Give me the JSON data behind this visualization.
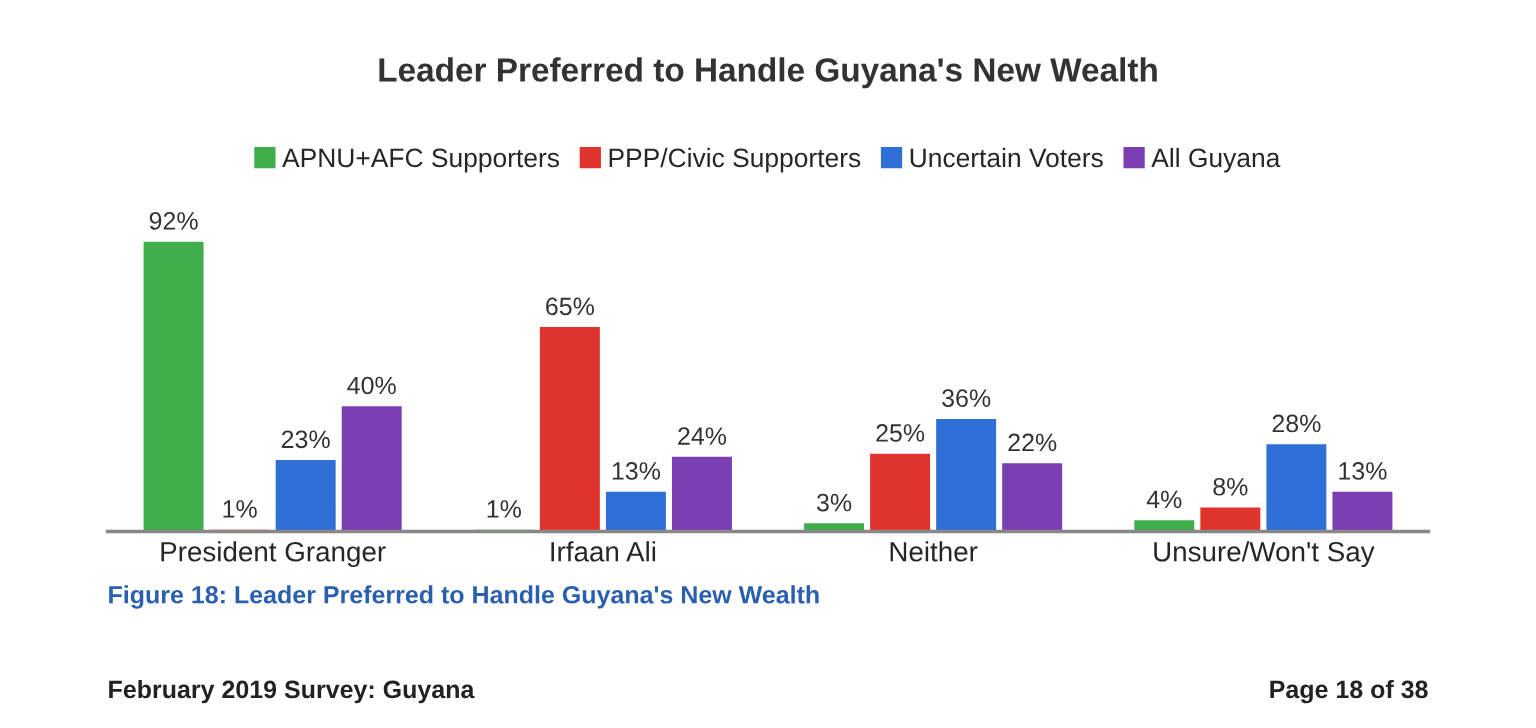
{
  "chart_data": {
    "type": "bar",
    "title": "Leader Preferred to Handle Guyana's New Wealth",
    "categories": [
      "President Granger",
      "Irfaan Ali",
      "Neither",
      "Unsure/Won't Say"
    ],
    "series": [
      {
        "name": "APNU+AFC Supporters",
        "color": "#3fae4a",
        "values": [
          92,
          1,
          3,
          4
        ],
        "value_labels": [
          "92%",
          "1%",
          "3%",
          "4%"
        ]
      },
      {
        "name": "PPP/Civic Supporters",
        "color": "#e0352f",
        "values": [
          1,
          65,
          25,
          8
        ],
        "value_labels": [
          "1%",
          "65%",
          "25%",
          "8%"
        ]
      },
      {
        "name": "Uncertain Voters",
        "color": "#2f6fd6",
        "values": [
          23,
          13,
          36,
          28
        ],
        "value_labels": [
          "23%",
          "13%",
          "36%",
          "28%"
        ]
      },
      {
        "name": "All Guyana",
        "color": "#7b3fb3",
        "values": [
          40,
          24,
          22,
          13
        ],
        "value_labels": [
          "40%",
          "24%",
          "22%",
          "13%"
        ]
      }
    ],
    "legend": "top",
    "grid": false,
    "tick_labels": "x",
    "annotations": [
      "Figure 18: Leader Preferred to Handle Guyana's New Wealth",
      "February 2019 Survey: Guyana",
      "Page 18 of 38"
    ]
  }
}
